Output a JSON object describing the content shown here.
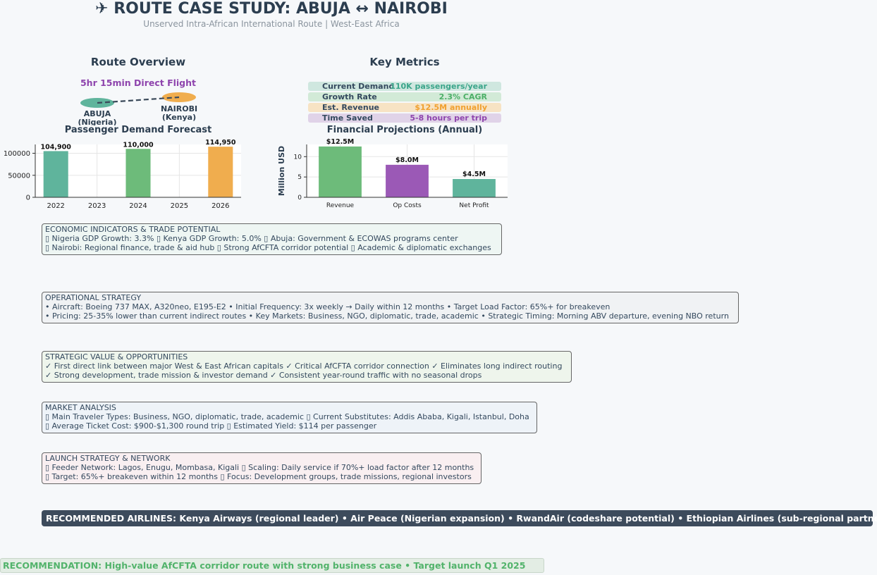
{
  "header": {
    "title": "✈ ROUTE CASE STUDY: ABUJA ↔ NAIROBI",
    "subtitle": "Unserved Intra-African International Route | West-East Africa"
  },
  "route_overview": {
    "title": "Route Overview",
    "flight_time": "5hr 15min Direct Flight",
    "origin_city": "ABUJA",
    "origin_country": "(Nigeria)",
    "dest_city": "NAIROBI",
    "dest_country": "(Kenya)",
    "origin_color": "#5fb49c",
    "dest_color": "#f0ad4e"
  },
  "key_metrics": {
    "title": "Key Metrics",
    "rows": [
      {
        "label": "Current Demand",
        "value": "110K passengers/year",
        "color": "#3aa58a",
        "bg": "#cfe7df"
      },
      {
        "label": "Growth Rate",
        "value": "2.3% CAGR",
        "color": "#4caf67",
        "bg": "#d2ead7"
      },
      {
        "label": "Est. Revenue",
        "value": "$12.5M annually",
        "color": "#f0a030",
        "bg": "#f7e3c4"
      },
      {
        "label": "Time Saved",
        "value": "5-8 hours per trip",
        "color": "#8e44ad",
        "bg": "#e0d3e8"
      }
    ]
  },
  "chart_data": [
    {
      "type": "bar",
      "title": "Passenger Demand Forecast",
      "categories": [
        "2022",
        "2024",
        "2026"
      ],
      "x": [
        2022,
        2024,
        2026
      ],
      "values": [
        104900,
        110000,
        114950
      ],
      "value_labels": [
        "104,900",
        "110,000",
        "114,950"
      ],
      "colors": [
        "#5fb49c",
        "#6dbb7a",
        "#f0ad4e"
      ],
      "xticks": [
        "2022",
        "2023",
        "2024",
        "2025",
        "2026"
      ],
      "yticks": [
        "0",
        "50000",
        "100000"
      ],
      "ylim": [
        0,
        120000
      ],
      "grid": true
    },
    {
      "type": "bar",
      "title": "Financial Projections (Annual)",
      "categories": [
        "Revenue",
        "Op Costs",
        "Net Profit"
      ],
      "values": [
        12.5,
        8.0,
        4.5
      ],
      "value_labels": [
        "$12.5M",
        "$8.0M",
        "$4.5M"
      ],
      "colors": [
        "#6dbb7a",
        "#9b59b6",
        "#5fb49c"
      ],
      "ylabel": "Million USD",
      "yticks": [
        "0",
        "5",
        "10"
      ],
      "ylim": [
        0,
        13
      ],
      "grid": true
    }
  ],
  "economic": {
    "title": "ECONOMIC INDICATORS & TRADE POTENTIAL",
    "line1": "▯ Nigeria GDP Growth: 3.3%  ▯ Kenya GDP Growth: 5.0%  ▯ Abuja: Government & ECOWAS programs center",
    "line2": "▯ Nairobi: Regional finance, trade & aid hub  ▯ Strong AfCFTA corridor potential  ▯ Academic & diplomatic exchanges",
    "bg": "#eef6f3"
  },
  "operational": {
    "title": "OPERATIONAL STRATEGY",
    "line1": "• Aircraft: Boeing 737 MAX, A320neo, E195-E2  • Initial Frequency: 3x weekly → Daily within 12 months  • Target Load Factor: 65%+ for breakeven",
    "line2": "• Pricing: 25-35% lower than current indirect routes  • Key Markets: Business, NGO, diplomatic, trade, academic  • Strategic Timing: Morning ABV departure, evening NBO return",
    "bg": "#f0f2f4"
  },
  "strategic": {
    "title": "STRATEGIC VALUE & OPPORTUNITIES",
    "line1": "✓ First direct link between major West & East African capitals  ✓ Critical AfCFTA corridor connection  ✓ Eliminates long indirect routing",
    "line2": "✓ Strong development, trade mission & investor demand  ✓ Consistent year-round traffic with no seasonal drops",
    "bg": "#eef5ec"
  },
  "market": {
    "title": "MARKET ANALYSIS",
    "line1": "▯ Main Traveler Types: Business, NGO, diplomatic, trade, academic  ▯ Current Substitutes: Addis Ababa, Kigali, Istanbul, Doha",
    "line2": "▯ Average Ticket Cost: $900-$1,300 round trip  ▯ Estimated Yield: $114 per passenger",
    "bg": "#eef3f8"
  },
  "launch": {
    "title": "LAUNCH STRATEGY & NETWORK",
    "line1": "▯ Feeder Network: Lagos, Enugu, Mombasa, Kigali  ▯ Scaling: Daily service if 70%+ load factor after 12 months",
    "line2": "▯ Target: 65%+ breakeven within 12 months  ▯ Focus: Development groups, trade missions, regional investors",
    "bg": "#f9eff1"
  },
  "airlines": {
    "text": "RECOMMENDED AIRLINES: Kenya Airways (regional leader) • Air Peace (Nigerian expansion) • RwandAir (codeshare potential) • Ethiopian Airlines (sub-regional partnership)"
  },
  "recommendation": {
    "text": "RECOMMENDATION: High-value AfCFTA corridor route with strong business case • Target launch Q1 2025"
  }
}
